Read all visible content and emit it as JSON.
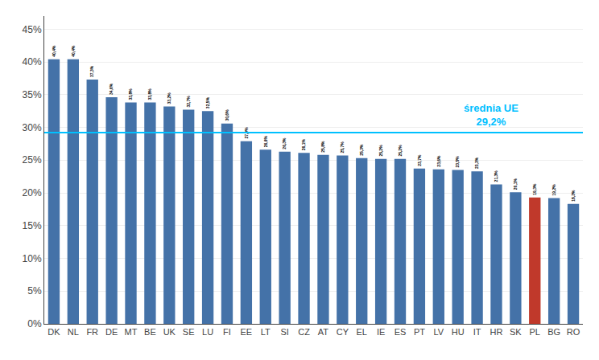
{
  "chart_data": {
    "type": "bar",
    "categories": [
      "DK",
      "NL",
      "FR",
      "DE",
      "MT",
      "BE",
      "UK",
      "SE",
      "LU",
      "FI",
      "EE",
      "LT",
      "SI",
      "CZ",
      "AT",
      "CY",
      "EL",
      "IE",
      "ES",
      "PT",
      "LV",
      "HU",
      "IT",
      "HR",
      "SK",
      "PL",
      "BG",
      "RO"
    ],
    "values": [
      40.4,
      40.4,
      37.3,
      34.6,
      33.8,
      33.8,
      33.2,
      32.7,
      32.5,
      30.6,
      27.9,
      26.6,
      26.3,
      26.1,
      25.8,
      25.7,
      25.3,
      25.2,
      25.2,
      23.7,
      23.6,
      23.5,
      23.3,
      21.3,
      20.1,
      19.3,
      19.2,
      18.3
    ],
    "value_labels": [
      "40,4%",
      "40,4%",
      "37,3%",
      "34,6%",
      "33,8%",
      "33,8%",
      "33,2%",
      "32,7%",
      "32,5%",
      "30,6%",
      "27,9%",
      "26,6%",
      "26,3%",
      "26,1%",
      "25,8%",
      "25,7%",
      "25,3%",
      "25,2%",
      "25,2%",
      "23,7%",
      "23,6%",
      "23,5%",
      "23,3%",
      "21,3%",
      "20,1%",
      "19,3%",
      "19,2%",
      "18,3%"
    ],
    "data_labels": true,
    "colors": [
      "#4472a8",
      "#4472a8",
      "#4472a8",
      "#4472a8",
      "#4472a8",
      "#4472a8",
      "#4472a8",
      "#4472a8",
      "#4472a8",
      "#4472a8",
      "#4472a8",
      "#4472a8",
      "#4472a8",
      "#4472a8",
      "#4472a8",
      "#4472a8",
      "#4472a8",
      "#4472a8",
      "#4472a8",
      "#4472a8",
      "#4472a8",
      "#4472a8",
      "#4472a8",
      "#4472a8",
      "#4472a8",
      "#c0392b",
      "#4472a8",
      "#4472a8"
    ],
    "average": {
      "value": 29.2,
      "labels": [
        "średnia UE",
        "29,2%"
      ],
      "color": "#00c0ff"
    },
    "ylim": [
      0,
      47
    ],
    "yticks": [
      {
        "value": 0,
        "label": "0%"
      },
      {
        "value": 5,
        "label": "5%"
      },
      {
        "value": 10,
        "label": "10%"
      },
      {
        "value": 15,
        "label": "15%"
      },
      {
        "value": 20,
        "label": "20%"
      },
      {
        "value": 25,
        "label": "25%"
      },
      {
        "value": 30,
        "label": "30%"
      },
      {
        "value": 35,
        "label": "35%"
      },
      {
        "value": 40,
        "label": "40%"
      },
      {
        "value": 45,
        "label": "45%"
      }
    ],
    "grid": true
  }
}
